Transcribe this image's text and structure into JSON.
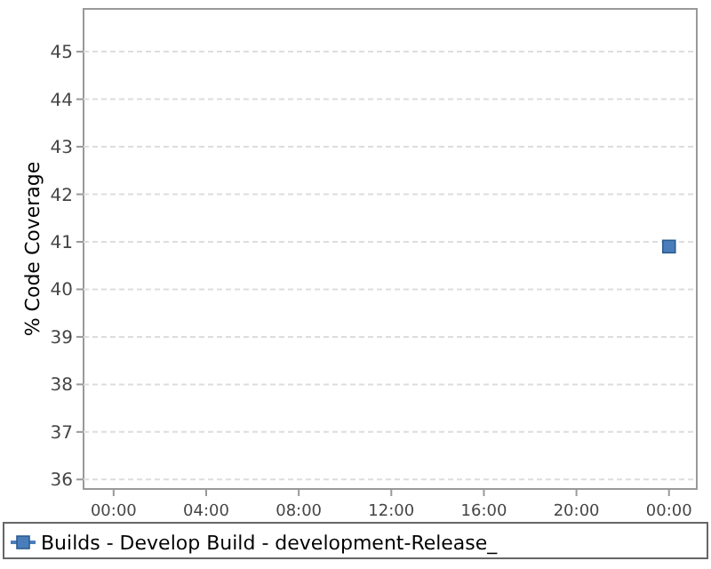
{
  "chart_data": {
    "type": "scatter",
    "ylabel": "% Code Coverage",
    "x": [
      24
    ],
    "series": [
      {
        "name": "Builds - Develop Build - development-Release_",
        "color": "#4a7ebb",
        "values": [
          40.9
        ]
      }
    ],
    "xlim": [
      -1.3,
      25.2
    ],
    "xticks": [
      {
        "value": 0,
        "label": "00:00"
      },
      {
        "value": 4,
        "label": "04:00"
      },
      {
        "value": 8,
        "label": "08:00"
      },
      {
        "value": 12,
        "label": "12:00"
      },
      {
        "value": 16,
        "label": "16:00"
      },
      {
        "value": 20,
        "label": "20:00"
      },
      {
        "value": 24,
        "label": "00:00"
      }
    ],
    "ylim": [
      35.8,
      45.9
    ],
    "yticks": [
      36,
      37,
      38,
      39,
      40,
      41,
      42,
      43,
      44,
      45
    ],
    "grid": "y",
    "marker": "square",
    "legend": "bottom"
  }
}
